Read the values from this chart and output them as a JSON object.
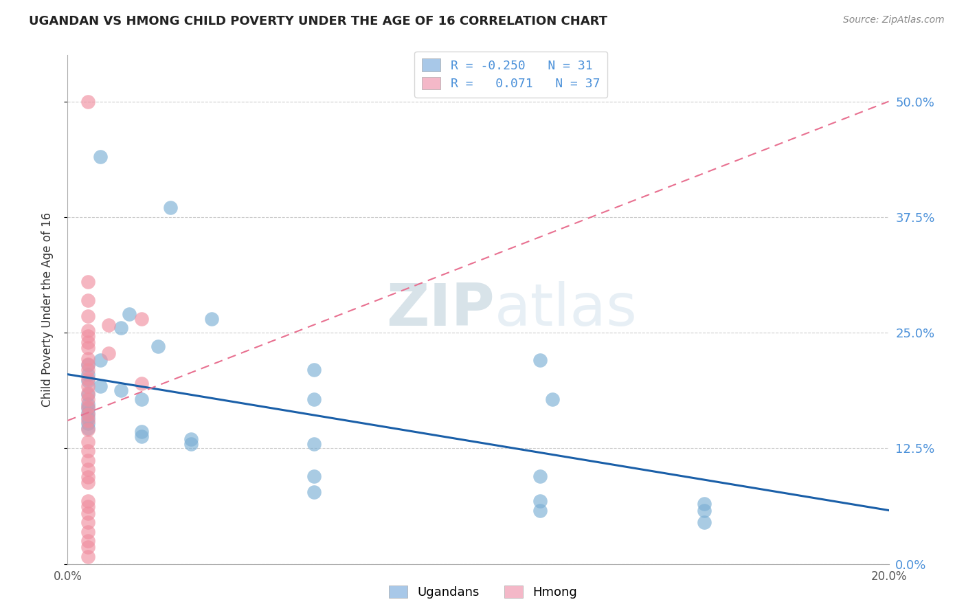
{
  "title": "UGANDAN VS HMONG CHILD POVERTY UNDER THE AGE OF 16 CORRELATION CHART",
  "source": "Source: ZipAtlas.com",
  "ylabel": "Child Poverty Under the Age of 16",
  "xlim": [
    0.0,
    0.2
  ],
  "ylim": [
    0.0,
    0.55
  ],
  "yticks": [
    0.0,
    0.125,
    0.25,
    0.375,
    0.5
  ],
  "ytick_labels": [
    "",
    "",
    "",
    "",
    ""
  ],
  "right_ytick_labels": [
    "0.0%",
    "12.5%",
    "25.0%",
    "37.5%",
    "50.0%"
  ],
  "xticks": [
    0.0,
    0.05,
    0.1,
    0.15,
    0.2
  ],
  "xtick_labels": [
    "0.0%",
    "",
    "",
    "",
    "20.0%"
  ],
  "watermark_zip": "ZIP",
  "watermark_atlas": "atlas",
  "ugandan_color": "#7bafd4",
  "hmong_color": "#f08fa0",
  "blue_line_color": "#1a5fa8",
  "pink_line_color": "#e87090",
  "blue_line": {
    "x0": 0.0,
    "y0": 0.205,
    "x1": 0.2,
    "y1": 0.058
  },
  "pink_line": {
    "x0": 0.0,
    "y0": 0.155,
    "x1": 0.2,
    "y1": 0.5
  },
  "ugandan_points": [
    [
      0.008,
      0.44
    ],
    [
      0.025,
      0.385
    ],
    [
      0.015,
      0.27
    ],
    [
      0.035,
      0.265
    ],
    [
      0.013,
      0.255
    ],
    [
      0.022,
      0.235
    ],
    [
      0.008,
      0.22
    ],
    [
      0.005,
      0.215
    ],
    [
      0.005,
      0.205
    ],
    [
      0.005,
      0.198
    ],
    [
      0.008,
      0.192
    ],
    [
      0.013,
      0.188
    ],
    [
      0.005,
      0.183
    ],
    [
      0.018,
      0.178
    ],
    [
      0.005,
      0.173
    ],
    [
      0.005,
      0.168
    ],
    [
      0.005,
      0.163
    ],
    [
      0.005,
      0.158
    ],
    [
      0.005,
      0.152
    ],
    [
      0.005,
      0.147
    ],
    [
      0.018,
      0.143
    ],
    [
      0.018,
      0.138
    ],
    [
      0.03,
      0.135
    ],
    [
      0.03,
      0.13
    ],
    [
      0.06,
      0.21
    ],
    [
      0.06,
      0.178
    ],
    [
      0.06,
      0.13
    ],
    [
      0.06,
      0.095
    ],
    [
      0.06,
      0.078
    ],
    [
      0.115,
      0.22
    ],
    [
      0.118,
      0.178
    ],
    [
      0.115,
      0.095
    ],
    [
      0.115,
      0.068
    ],
    [
      0.115,
      0.058
    ],
    [
      0.155,
      0.045
    ],
    [
      0.155,
      0.058
    ],
    [
      0.155,
      0.065
    ]
  ],
  "hmong_points": [
    [
      0.005,
      0.5
    ],
    [
      0.005,
      0.305
    ],
    [
      0.005,
      0.285
    ],
    [
      0.005,
      0.268
    ],
    [
      0.01,
      0.258
    ],
    [
      0.005,
      0.252
    ],
    [
      0.005,
      0.246
    ],
    [
      0.005,
      0.24
    ],
    [
      0.005,
      0.234
    ],
    [
      0.01,
      0.228
    ],
    [
      0.005,
      0.222
    ],
    [
      0.005,
      0.216
    ],
    [
      0.005,
      0.21
    ],
    [
      0.005,
      0.2
    ],
    [
      0.005,
      0.192
    ],
    [
      0.005,
      0.185
    ],
    [
      0.005,
      0.178
    ],
    [
      0.005,
      0.17
    ],
    [
      0.005,
      0.162
    ],
    [
      0.005,
      0.155
    ],
    [
      0.005,
      0.145
    ],
    [
      0.005,
      0.132
    ],
    [
      0.005,
      0.122
    ],
    [
      0.005,
      0.112
    ],
    [
      0.005,
      0.102
    ],
    [
      0.005,
      0.094
    ],
    [
      0.005,
      0.088
    ],
    [
      0.018,
      0.265
    ],
    [
      0.018,
      0.195
    ],
    [
      0.005,
      0.068
    ],
    [
      0.005,
      0.062
    ],
    [
      0.005,
      0.055
    ],
    [
      0.005,
      0.045
    ],
    [
      0.005,
      0.035
    ],
    [
      0.005,
      0.025
    ],
    [
      0.005,
      0.018
    ],
    [
      0.005,
      0.008
    ]
  ]
}
